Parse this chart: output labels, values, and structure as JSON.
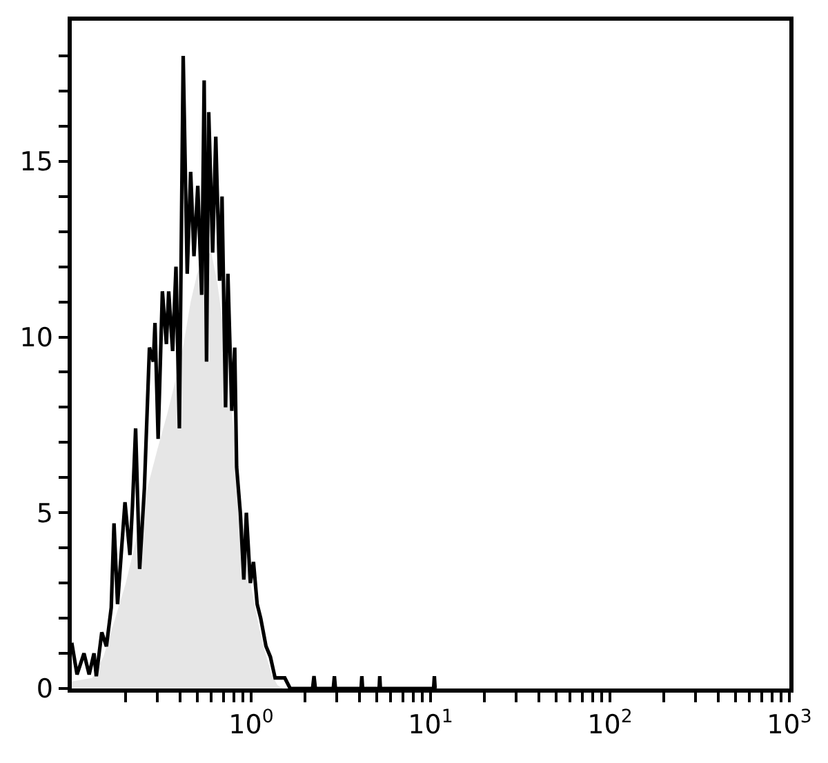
{
  "chart_data": {
    "type": "line",
    "log": "x",
    "xlim": [
      0.1,
      1000
    ],
    "ylim": [
      0,
      19
    ],
    "xticks": [
      {
        "value": 0.2,
        "label": null
      },
      {
        "value": 0.3,
        "label": null
      },
      {
        "value": 0.4,
        "label": null
      },
      {
        "value": 0.5,
        "label": null
      },
      {
        "value": 0.6,
        "label": null
      },
      {
        "value": 0.7,
        "label": null
      },
      {
        "value": 0.8,
        "label": null
      },
      {
        "value": 0.9,
        "label": null
      },
      {
        "value": 1,
        "label": "10$^{0}$"
      },
      {
        "value": 2,
        "label": null
      },
      {
        "value": 3,
        "label": null
      },
      {
        "value": 4,
        "label": null
      },
      {
        "value": 5,
        "label": null
      },
      {
        "value": 6,
        "label": null
      },
      {
        "value": 7,
        "label": null
      },
      {
        "value": 8,
        "label": null
      },
      {
        "value": 9,
        "label": null
      },
      {
        "value": 10,
        "label": "10$^{1}$"
      },
      {
        "value": 20,
        "label": null
      },
      {
        "value": 30,
        "label": null
      },
      {
        "value": 40,
        "label": null
      },
      {
        "value": 50,
        "label": null
      },
      {
        "value": 60,
        "label": null
      },
      {
        "value": 70,
        "label": null
      },
      {
        "value": 80,
        "label": null
      },
      {
        "value": 90,
        "label": null
      },
      {
        "value": 100,
        "label": "10$^{2}$"
      },
      {
        "value": 200,
        "label": null
      },
      {
        "value": 300,
        "label": null
      },
      {
        "value": 400,
        "label": null
      },
      {
        "value": 500,
        "label": null
      },
      {
        "value": 600,
        "label": null
      },
      {
        "value": 700,
        "label": null
      },
      {
        "value": 800,
        "label": null
      },
      {
        "value": 900,
        "label": null
      },
      {
        "value": 1000,
        "label": "10$^{3}$"
      }
    ],
    "yticks": [
      0,
      {
        "value": 1,
        "label": null
      },
      {
        "value": 2,
        "label": null
      },
      {
        "value": 3,
        "label": null
      },
      {
        "value": 4,
        "label": null
      },
      5,
      {
        "value": 6,
        "label": null
      },
      {
        "value": 7,
        "label": null
      },
      {
        "value": 8,
        "label": null
      },
      {
        "value": 9,
        "label": null
      },
      10,
      {
        "value": 11,
        "label": null
      },
      {
        "value": 12,
        "label": null
      },
      {
        "value": 13,
        "label": null
      },
      {
        "value": 14,
        "label": null
      },
      15,
      {
        "value": 16,
        "label": null
      },
      {
        "value": 17,
        "label": null
      },
      {
        "value": 18,
        "label": null
      }
    ],
    "marker": "none",
    "series": [
      {
        "type": "area",
        "color": "#e6e6e6",
        "x": [
          0.1,
          0.13,
          0.15,
          0.17,
          0.2,
          0.23,
          0.27,
          0.3,
          0.34,
          0.38,
          0.42,
          0.46,
          0.5,
          0.55,
          0.6,
          0.65,
          0.7,
          0.75,
          0.8,
          0.85,
          0.9,
          0.95,
          1.0,
          1.1,
          1.2,
          1.3,
          1.4,
          1.5
        ],
        "values": [
          0.2,
          0.3,
          0.9,
          1.8,
          3.0,
          4.3,
          5.9,
          6.8,
          7.8,
          8.8,
          9.8,
          11.0,
          11.8,
          12.3,
          12.4,
          11.5,
          10.2,
          8.8,
          7.3,
          6.0,
          4.8,
          3.7,
          2.9,
          1.8,
          1.0,
          0.4,
          0.1,
          0
        ]
      },
      {
        "color": "#000000",
        "line_style": "solid",
        "x": [
          0.1,
          0.107,
          0.117,
          0.125,
          0.133,
          0.137,
          0.147,
          0.156,
          0.166,
          0.172,
          0.18,
          0.198,
          0.211,
          0.218,
          0.227,
          0.239,
          0.254,
          0.271,
          0.285,
          0.291,
          0.303,
          0.32,
          0.337,
          0.347,
          0.365,
          0.381,
          0.398,
          0.418,
          0.44,
          0.46,
          0.48,
          0.504,
          0.53,
          0.547,
          0.564,
          0.58,
          0.61,
          0.635,
          0.667,
          0.688,
          0.72,
          0.742,
          0.78,
          0.81,
          0.83,
          0.87,
          0.91,
          0.94,
          0.99,
          1.03,
          1.08,
          1.13,
          1.21,
          1.28,
          1.36,
          1.45,
          1.54,
          1.65,
          2.2,
          2.24,
          2.28,
          2.87,
          2.91,
          2.95,
          4.1,
          4.14,
          4.18,
          5.17,
          5.21,
          5.25,
          10.4,
          10.5,
          10.6
        ],
        "values": [
          1.3,
          0.4,
          1.0,
          0.4,
          1.0,
          0.35,
          1.6,
          1.2,
          2.3,
          4.7,
          2.4,
          5.3,
          3.8,
          5.2,
          7.4,
          3.4,
          5.7,
          9.7,
          9.3,
          10.4,
          7.1,
          11.3,
          9.8,
          11.3,
          9.6,
          12.0,
          7.4,
          18.0,
          11.8,
          14.7,
          12.3,
          14.3,
          11.2,
          17.3,
          9.3,
          16.4,
          12.4,
          15.7,
          11.6,
          14.0,
          8.0,
          11.8,
          7.9,
          9.7,
          6.3,
          5.0,
          3.1,
          5.0,
          3.0,
          3.6,
          2.4,
          2.0,
          1.2,
          0.9,
          0.3,
          0.3,
          0.3,
          0,
          0,
          0.35,
          0,
          0,
          0.35,
          0,
          0,
          0.35,
          0,
          0,
          0.35,
          0,
          0,
          0.35,
          0
        ]
      }
    ]
  }
}
